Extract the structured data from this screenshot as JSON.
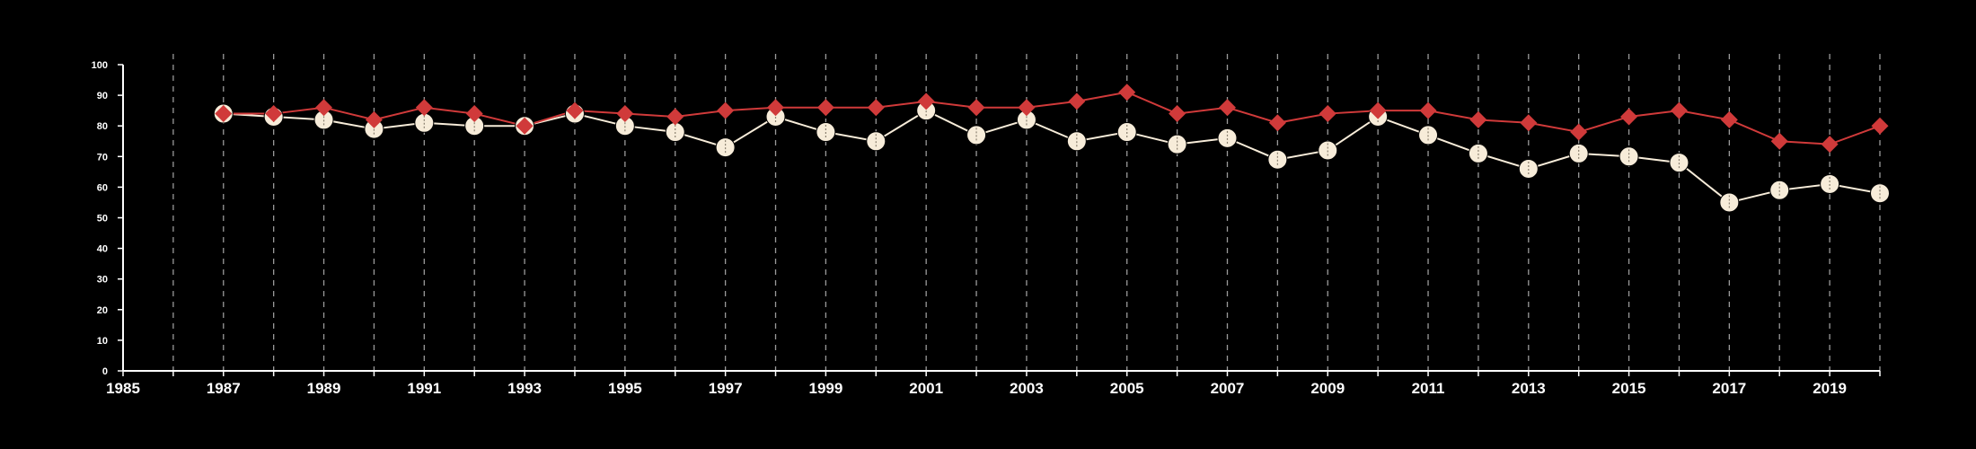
{
  "chart_data": {
    "type": "line",
    "title": "",
    "xlabel": "",
    "ylabel": "",
    "xlim": [
      1985,
      2020
    ],
    "ylim": [
      0,
      100
    ],
    "x_ticks": [
      "1985",
      "1987",
      "1989",
      "1991",
      "1993",
      "1995",
      "1997",
      "1999",
      "2001",
      "2003",
      "2005",
      "2007",
      "2009",
      "2011",
      "2013",
      "2015",
      "2017",
      "2019"
    ],
    "y_ticks": [
      "0",
      "10",
      "20",
      "30",
      "40",
      "50",
      "60",
      "70",
      "80",
      "90",
      "100"
    ],
    "grid": "vertical dashed lines at every year",
    "legend": "none",
    "x": [
      1987,
      1988,
      1989,
      1990,
      1991,
      1992,
      1993,
      1994,
      1995,
      1996,
      1997,
      1998,
      1999,
      2000,
      2001,
      2002,
      2003,
      2004,
      2005,
      2006,
      2007,
      2008,
      2009,
      2010,
      2011,
      2012,
      2013,
      2014,
      2015,
      2016,
      2017,
      2018,
      2019,
      2020
    ],
    "series": [
      {
        "marker": "diamond",
        "color": "#d03a3a",
        "values": [
          84,
          84,
          86,
          82,
          86,
          84,
          80,
          85,
          84,
          83,
          85,
          86,
          86,
          86,
          88,
          86,
          86,
          88,
          91,
          84,
          86,
          81,
          84,
          85,
          85,
          82,
          81,
          78,
          83,
          85,
          82,
          75,
          74,
          80
        ]
      },
      {
        "marker": "circle",
        "color": "#f7ecd9",
        "values": [
          84,
          83,
          82,
          79,
          81,
          80,
          80,
          84,
          80,
          78,
          73,
          83,
          78,
          75,
          85,
          77,
          82,
          75,
          78,
          74,
          76,
          69,
          72,
          83,
          77,
          71,
          66,
          71,
          70,
          68,
          55,
          59,
          61,
          58
        ]
      }
    ],
    "colors": {
      "background": "#000000",
      "axis": "#ffffff",
      "grid": "#9a9a9a"
    }
  }
}
